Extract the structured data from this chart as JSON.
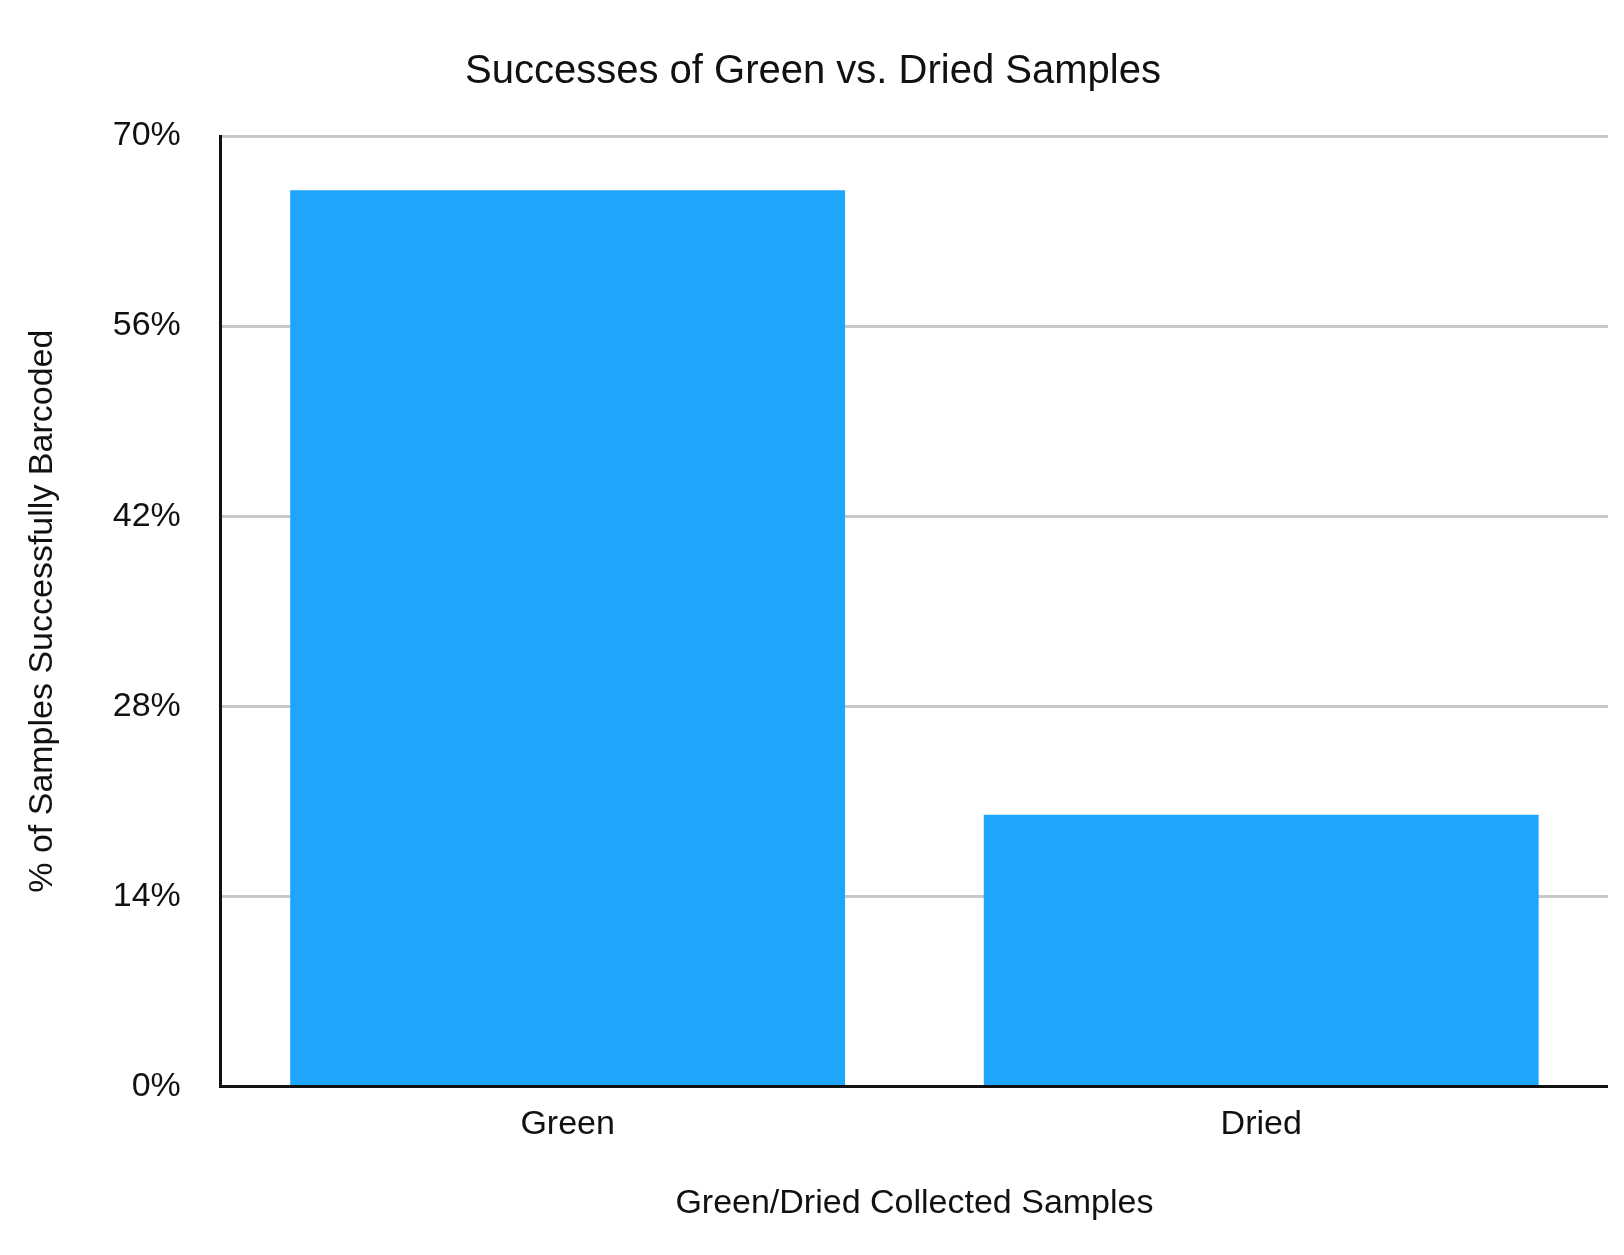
{
  "chart_data": {
    "type": "bar",
    "title": "Successes of Green vs. Dried Samples",
    "xlabel": "Green/Dried Collected Samples",
    "ylabel": "% of Samples Successfully Barcoded",
    "categories": [
      "Green",
      "Dried"
    ],
    "values": [
      66,
      20
    ],
    "color": "#1ea5fc",
    "ylim": [
      0,
      70
    ],
    "yticks": [
      {
        "value": 0,
        "label": "0%"
      },
      {
        "value": 14,
        "label": "14%"
      },
      {
        "value": 28,
        "label": "28%"
      },
      {
        "value": 42,
        "label": "42%"
      },
      {
        "value": 56,
        "label": "56%"
      },
      {
        "value": 70,
        "label": "70%"
      }
    ],
    "grid": "y"
  }
}
